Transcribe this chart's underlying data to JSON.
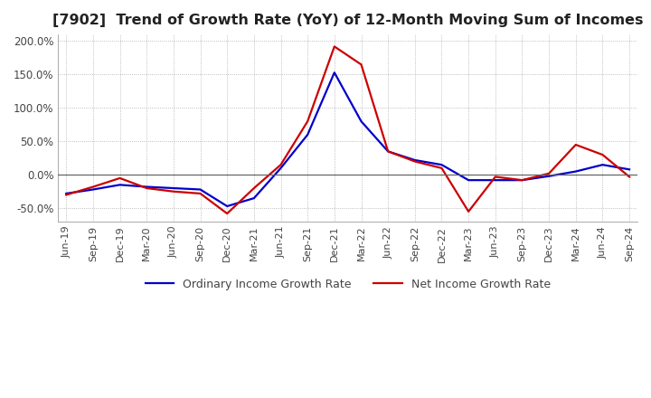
{
  "title": "[7902]  Trend of Growth Rate (YoY) of 12-Month Moving Sum of Incomes",
  "title_fontsize": 11.5,
  "ylim": [
    -70,
    210
  ],
  "yticks": [
    -50,
    0,
    50,
    100,
    150,
    200
  ],
  "ytick_labels": [
    "-50.0%",
    "0.0%",
    "50.0%",
    "100.0%",
    "150.0%",
    "200.0%"
  ],
  "background_color": "#ffffff",
  "grid_color": "#aaaaaa",
  "x_labels": [
    "Jun-19",
    "Sep-19",
    "Dec-19",
    "Mar-20",
    "Jun-20",
    "Sep-20",
    "Dec-20",
    "Mar-21",
    "Jun-21",
    "Sep-21",
    "Dec-21",
    "Mar-22",
    "Jun-22",
    "Sep-22",
    "Dec-22",
    "Mar-23",
    "Jun-23",
    "Sep-23",
    "Dec-23",
    "Mar-24",
    "Jun-24",
    "Sep-24"
  ],
  "ordinary_income": [
    -28,
    -22,
    -15,
    -18,
    -20,
    -22,
    -47,
    -35,
    10,
    60,
    153,
    80,
    35,
    22,
    15,
    -8,
    -8,
    -8,
    -2,
    5,
    15,
    8
  ],
  "net_income": [
    -30,
    -18,
    -5,
    -20,
    -25,
    -28,
    -58,
    -20,
    15,
    80,
    192,
    165,
    35,
    20,
    10,
    -55,
    -3,
    -8,
    2,
    45,
    30,
    -3
  ],
  "line_color_ordinary": "#0000cc",
  "line_color_net": "#cc0000",
  "line_width": 1.6,
  "legend_ordinary": "Ordinary Income Growth Rate",
  "legend_net": "Net Income Growth Rate"
}
